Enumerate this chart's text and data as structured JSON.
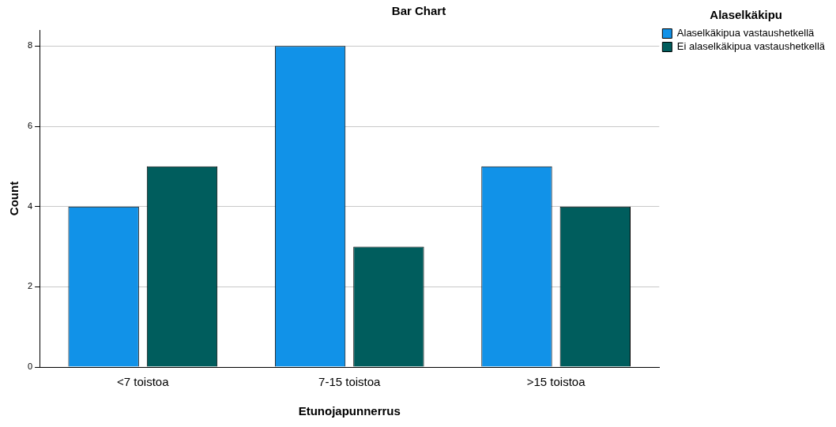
{
  "chart_data": {
    "type": "bar",
    "title": "Bar Chart",
    "xlabel": "Etunojapunnerrus",
    "ylabel": "Count",
    "legend_title": "Alaselkäkipu",
    "categories": [
      "<7 toistoa",
      "7-15 toistoa",
      ">15 toistoa"
    ],
    "series": [
      {
        "name": "Alaselkäkipua vastaushetkellä",
        "color": "#1192e8",
        "values": [
          4,
          8,
          5
        ]
      },
      {
        "name": "Ei alaselkäkipua vastaushetkellä",
        "color": "#005d5d",
        "values": [
          5,
          3,
          4
        ]
      }
    ],
    "ylim": [
      0,
      8.4
    ],
    "yticks": [
      0,
      2,
      4,
      6,
      8
    ],
    "grid": "y",
    "legend": "top right"
  }
}
